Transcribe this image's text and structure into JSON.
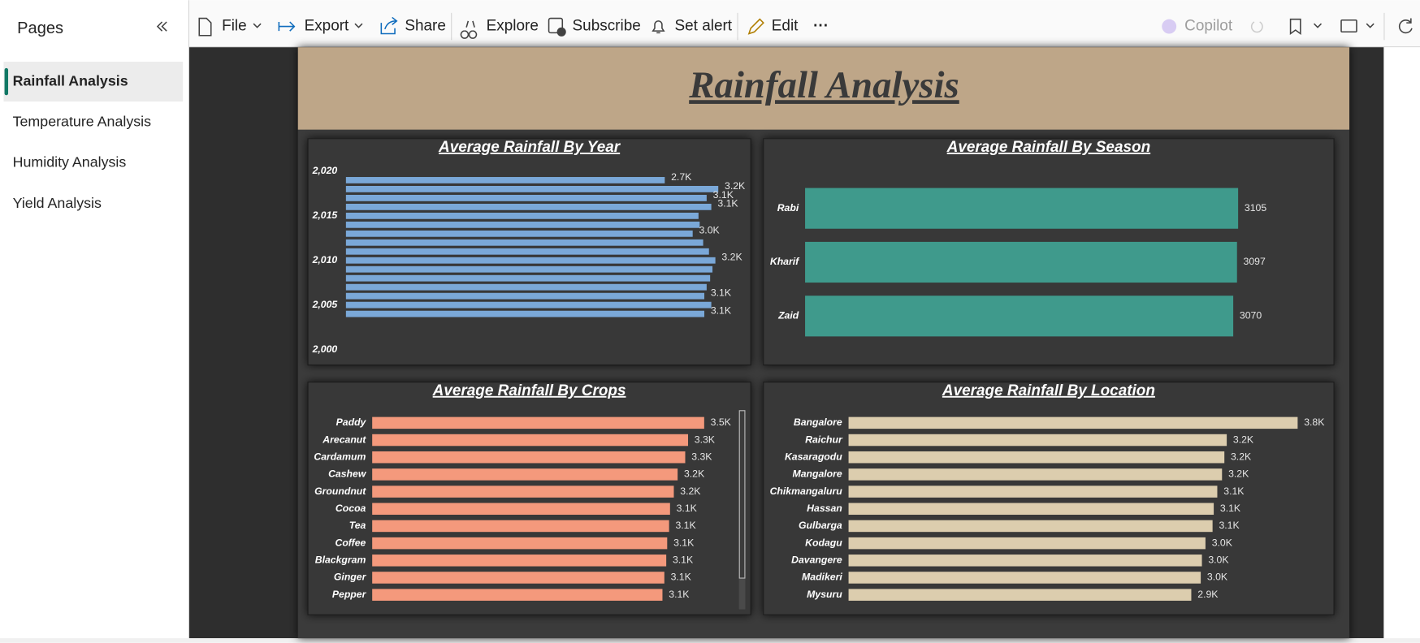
{
  "sidebar": {
    "title": "Pages",
    "pages": [
      "Rainfall Analysis",
      "Temperature Analysis",
      "Humidity Analysis",
      "Yield Analysis"
    ]
  },
  "toolbar": {
    "items": [
      "File",
      "Export",
      "Share",
      "Explore",
      "Subscribe",
      "Set alert",
      "Edit",
      "···"
    ],
    "copilot": "Copilot"
  },
  "report": {
    "title": "Rainfall Analysis"
  },
  "chart_data": [
    {
      "type": "bar",
      "orientation": "horizontal",
      "title": "Average Rainfall By Year",
      "color": "#7aa8d8",
      "y": [
        2019,
        2018,
        2017,
        2016,
        2015,
        2014,
        2013,
        2012,
        2011,
        2010,
        2009,
        2008,
        2007,
        2006,
        2005,
        2004
      ],
      "values": [
        2740,
        3200,
        3100,
        3140,
        3030,
        3040,
        2980,
        3070,
        3120,
        3175,
        3150,
        3130,
        3100,
        3080,
        3140,
        3080
      ],
      "value_labels": [
        "2.7K",
        "3.2K",
        "3.1K",
        "3.1K",
        null,
        null,
        "3.0K",
        null,
        null,
        "3.2K",
        null,
        null,
        null,
        "3.1K",
        null,
        "3.1K"
      ],
      "xlim": [
        0,
        3300
      ],
      "ylim": [
        2000,
        2020
      ],
      "yticks": [
        {
          "value": 2000,
          "label": "2,000"
        },
        {
          "value": 2005,
          "label": "2,005"
        },
        {
          "value": 2010,
          "label": "2,010"
        },
        {
          "value": 2015,
          "label": "2,015"
        },
        {
          "value": 2020,
          "label": "2,020"
        }
      ]
    },
    {
      "type": "bar",
      "orientation": "horizontal",
      "title": "Average Rainfall By Season",
      "color": "#3f9a8c",
      "categories": [
        "Rabi",
        "Kharif",
        "Zaid"
      ],
      "values": [
        3105,
        3097,
        3070
      ],
      "xlim": [
        0,
        3500
      ]
    },
    {
      "type": "bar",
      "orientation": "horizontal",
      "title": "Average Rainfall By Crops",
      "color": "#f4997c",
      "categories": [
        "Paddy",
        "Arecanut",
        "Cardamum",
        "Cashew",
        "Groundnut",
        "Cocoa",
        "Tea",
        "Coffee",
        "Blackgram",
        "Ginger",
        "Pepper"
      ],
      "values": [
        3500,
        3330,
        3300,
        3220,
        3180,
        3140,
        3130,
        3110,
        3100,
        3080,
        3060
      ],
      "value_labels": [
        "3.5K",
        "3.3K",
        "3.3K",
        "3.2K",
        "3.2K",
        "3.1K",
        "3.1K",
        "3.1K",
        "3.1K",
        "3.1K",
        "3.1K"
      ],
      "xlim": [
        0,
        3800
      ]
    },
    {
      "type": "bar",
      "orientation": "horizontal",
      "title": "Average Rainfall By Location",
      "color": "#dccdae",
      "categories": [
        "Bangalore",
        "Raichur",
        "Kasaragodu",
        "Mangalore",
        "Chikmangaluru",
        "Hassan",
        "Gulbarga",
        "Kodagu",
        "Davangere",
        "Madikeri",
        "Mysuru"
      ],
      "values": [
        3800,
        3200,
        3180,
        3160,
        3120,
        3090,
        3080,
        3020,
        2990,
        2980,
        2900
      ],
      "value_labels": [
        "3.8K",
        "3.2K",
        "3.2K",
        "3.2K",
        "3.1K",
        "3.1K",
        "3.1K",
        "3.0K",
        "3.0K",
        "3.0K",
        "2.9K"
      ],
      "xlim": [
        0,
        4000
      ]
    }
  ]
}
